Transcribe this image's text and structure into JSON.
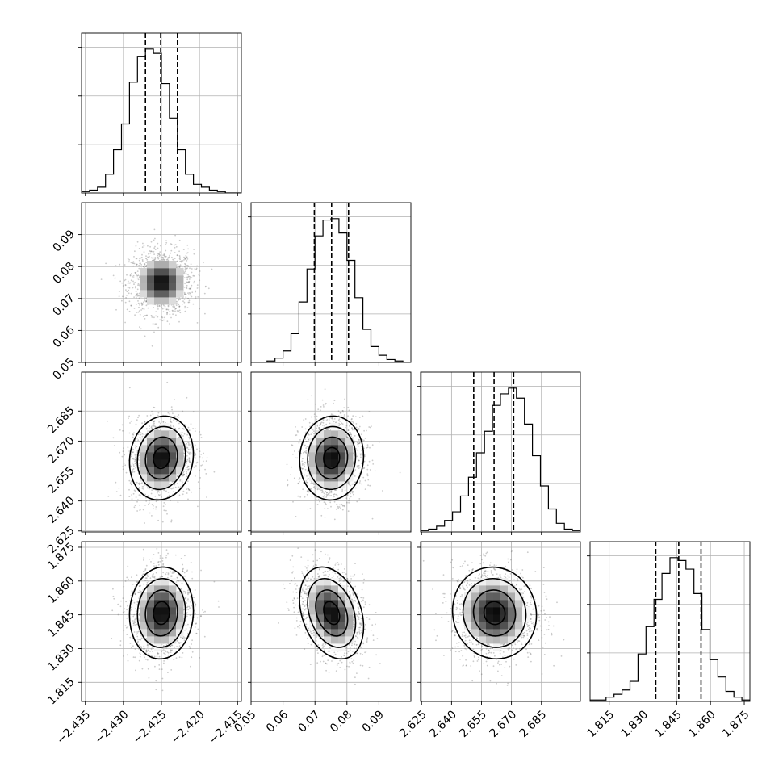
{
  "chart_data": {
    "type": "corner",
    "parameters": [
      {
        "mean": -2.425,
        "sd": 0.0021,
        "range": [
          -2.4355,
          -2.4145
        ],
        "ticks": [
          -2.435,
          -2.43,
          -2.425,
          -2.42,
          -2.415
        ],
        "tick_labels": [
          "−2.435",
          "−2.430",
          "−2.425",
          "−2.420",
          "−2.415"
        ],
        "quantiles": [
          -2.4271,
          -2.4251,
          -2.4229
        ],
        "hist": [
          0.01,
          0.02,
          0.04,
          0.13,
          0.3,
          0.48,
          0.77,
          0.95,
          1.0,
          0.97,
          0.76,
          0.52,
          0.3,
          0.13,
          0.06,
          0.04,
          0.02,
          0.01,
          0.0,
          0.0
        ]
      },
      {
        "mean": 0.0752,
        "sd": 0.005,
        "range": [
          0.05,
          0.1
        ],
        "ticks": [
          0.05,
          0.06,
          0.07,
          0.08,
          0.09
        ],
        "tick_labels": [
          "0.05",
          "0.06",
          "0.07",
          "0.08",
          "0.09"
        ],
        "quantiles": [
          0.0698,
          0.0752,
          0.0805
        ],
        "hist": [
          0.0,
          0.0,
          0.01,
          0.03,
          0.08,
          0.2,
          0.42,
          0.65,
          0.88,
          0.99,
          1.0,
          0.9,
          0.71,
          0.45,
          0.23,
          0.11,
          0.05,
          0.02,
          0.01,
          0.0
        ]
      },
      {
        "mean": 2.6615,
        "sd": 0.0105,
        "range": [
          2.6245,
          2.7045
        ],
        "ticks": [
          2.625,
          2.64,
          2.655,
          2.67,
          2.685
        ],
        "tick_labels": [
          "2.625",
          "2.640",
          "2.655",
          "2.670",
          "2.685"
        ],
        "quantiles": [
          2.6511,
          2.6613,
          2.6711
        ],
        "hist": [
          0.01,
          0.02,
          0.04,
          0.08,
          0.14,
          0.25,
          0.38,
          0.55,
          0.7,
          0.88,
          0.96,
          1.0,
          0.93,
          0.75,
          0.53,
          0.32,
          0.16,
          0.06,
          0.02,
          0.01
        ]
      },
      {
        "mean": 1.8458,
        "sd": 0.0102,
        "range": [
          1.8065,
          1.8775
        ],
        "ticks": [
          1.815,
          1.83,
          1.845,
          1.86,
          1.875
        ],
        "tick_labels": [
          "1.815",
          "1.830",
          "1.845",
          "1.860",
          "1.875"
        ],
        "quantiles": [
          1.8357,
          1.8459,
          1.8558
        ],
        "hist": [
          0.01,
          0.01,
          0.03,
          0.05,
          0.08,
          0.14,
          0.33,
          0.52,
          0.71,
          0.89,
          1.0,
          0.98,
          0.92,
          0.75,
          0.5,
          0.29,
          0.17,
          0.07,
          0.03,
          0.01
        ]
      }
    ],
    "correlations": {
      "1-0": 0.0,
      "2-0": 0.1,
      "2-1": 0.05,
      "3-0": 0.05,
      "3-1": -0.3,
      "3-2": -0.05
    },
    "grid": true,
    "quantile_levels": [
      0.16,
      0.5,
      0.84
    ],
    "contour_levels_sigma": [
      0.5,
      1.0,
      1.5,
      2.0
    ]
  }
}
